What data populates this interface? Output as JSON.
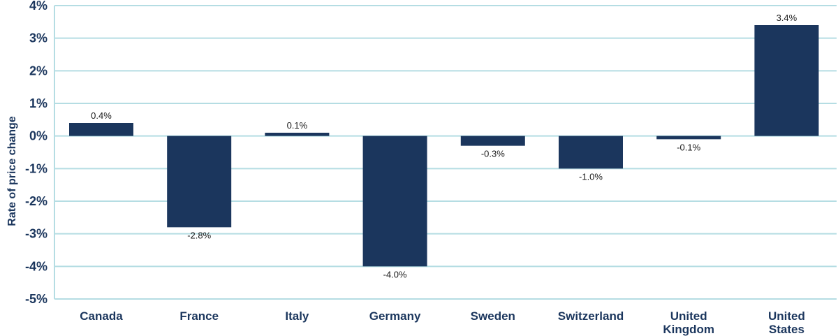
{
  "chart_data": {
    "type": "bar",
    "title": "",
    "xlabel": "",
    "ylabel": "Rate of price change",
    "categories": [
      "Canada",
      "France",
      "Italy",
      "Germany",
      "Sweden",
      "Switzerland",
      "United Kingdom",
      "United States"
    ],
    "category_lines": [
      [
        "Canada"
      ],
      [
        "France"
      ],
      [
        "Italy"
      ],
      [
        "Germany"
      ],
      [
        "Sweden"
      ],
      [
        "Switzerland"
      ],
      [
        "United",
        "Kingdom"
      ],
      [
        "United",
        "States"
      ]
    ],
    "values": [
      0.4,
      -2.8,
      0.1,
      -4.0,
      -0.3,
      -1.0,
      -0.1,
      3.4
    ],
    "data_labels": [
      "0.4%",
      "-2.8%",
      "0.1%",
      "-4.0%",
      "-0.3%",
      "-1.0%",
      "-0.1%",
      "3.4%"
    ],
    "ylim": [
      -5,
      4
    ],
    "yticks": [
      4,
      3,
      2,
      1,
      0,
      -1,
      -2,
      -3,
      -4,
      -5
    ],
    "ytick_labels": [
      "4%",
      "3%",
      "2%",
      "1%",
      "0%",
      "-1%",
      "-2%",
      "-3%",
      "-4%",
      "-5%"
    ],
    "grid": true,
    "legend": "none",
    "colors": {
      "bar": "#1b365d",
      "grid": "#b5dde3",
      "axis": "#1b365d",
      "text": "#1b365d"
    }
  }
}
